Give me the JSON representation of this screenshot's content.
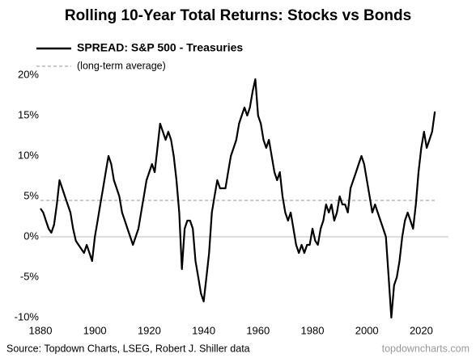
{
  "chart_data": {
    "type": "line",
    "title": "Rolling 10-Year Total Returns: Stocks vs Bonds",
    "source": "Source: Topdown Charts, LSEG, Robert J. Shiller data",
    "watermark": "topdowncharts.com",
    "x": [
      1880,
      1881,
      1882,
      1883,
      1884,
      1885,
      1886,
      1887,
      1888,
      1889,
      1890,
      1891,
      1892,
      1893,
      1894,
      1895,
      1896,
      1897,
      1898,
      1899,
      1900,
      1901,
      1902,
      1903,
      1904,
      1905,
      1906,
      1907,
      1908,
      1909,
      1910,
      1911,
      1912,
      1913,
      1914,
      1915,
      1916,
      1917,
      1918,
      1919,
      1920,
      1921,
      1922,
      1923,
      1924,
      1925,
      1926,
      1927,
      1928,
      1929,
      1930,
      1931,
      1932,
      1933,
      1934,
      1935,
      1936,
      1937,
      1938,
      1939,
      1940,
      1941,
      1942,
      1943,
      1944,
      1945,
      1946,
      1947,
      1948,
      1949,
      1950,
      1951,
      1952,
      1953,
      1954,
      1955,
      1956,
      1957,
      1958,
      1959,
      1960,
      1961,
      1962,
      1963,
      1964,
      1965,
      1966,
      1967,
      1968,
      1969,
      1970,
      1971,
      1972,
      1973,
      1974,
      1975,
      1976,
      1977,
      1978,
      1979,
      1980,
      1981,
      1982,
      1983,
      1984,
      1985,
      1986,
      1987,
      1988,
      1989,
      1990,
      1991,
      1992,
      1993,
      1994,
      1995,
      1996,
      1997,
      1998,
      1999,
      2000,
      2001,
      2002,
      2003,
      2004,
      2005,
      2006,
      2007,
      2008,
      2009,
      2010,
      2011,
      2012,
      2013,
      2014,
      2015,
      2016,
      2017,
      2018,
      2019,
      2020,
      2021,
      2022,
      2023,
      2024,
      2025
    ],
    "series": [
      {
        "name": "SPREAD: S&P 500 - Treasuries",
        "color": "#000000",
        "values": [
          3.5,
          3,
          2,
          1,
          0.5,
          1.5,
          4,
          7,
          6,
          5,
          4,
          3,
          1,
          -0.5,
          -1,
          -1.5,
          -2,
          -1,
          -2,
          -3,
          0,
          2,
          4,
          6,
          8,
          10,
          9,
          7,
          6,
          5,
          3,
          2,
          1,
          0,
          -1,
          0,
          1,
          3,
          5,
          7,
          8,
          9,
          8,
          11,
          14,
          13,
          12,
          13,
          12,
          10,
          7,
          3,
          -4,
          1,
          2,
          2,
          1,
          -3,
          -5,
          -7,
          -8,
          -5,
          -2,
          3,
          5,
          7,
          6,
          6,
          6,
          8,
          10,
          11,
          12,
          14,
          15,
          16,
          15,
          16,
          18,
          19.5,
          15,
          14,
          12,
          11,
          12,
          10,
          8,
          7,
          8,
          5,
          3,
          2,
          3,
          1,
          -1,
          -2,
          -1,
          -2,
          -1,
          -1,
          1,
          -0.5,
          -1,
          1,
          2,
          4,
          3,
          4,
          2,
          3,
          5,
          4,
          4,
          3,
          6,
          7,
          8,
          9,
          10,
          9,
          7,
          5,
          3,
          4,
          3,
          2,
          1,
          0,
          -5,
          -10,
          -6,
          -5,
          -3,
          0,
          2,
          3,
          2,
          1,
          4,
          8,
          11,
          13,
          11,
          12,
          13,
          15.5
        ]
      }
    ],
    "reference_line": {
      "name": "(long-term average)",
      "value": 4.5,
      "color": "#aaaaaa"
    },
    "xlim": [
      1880,
      2030
    ],
    "xticks": [
      1880,
      1900,
      1920,
      1940,
      1960,
      1980,
      2000,
      2020
    ],
    "ylim": [
      -10,
      20
    ],
    "yticks": [
      {
        "value": -10,
        "label": "-10%"
      },
      {
        "value": -5,
        "label": "-5%"
      },
      {
        "value": 0,
        "label": "0%"
      },
      {
        "value": 5,
        "label": "5%"
      },
      {
        "value": 10,
        "label": "10%"
      },
      {
        "value": 15,
        "label": "15%"
      },
      {
        "value": 20,
        "label": "20%"
      }
    ]
  }
}
